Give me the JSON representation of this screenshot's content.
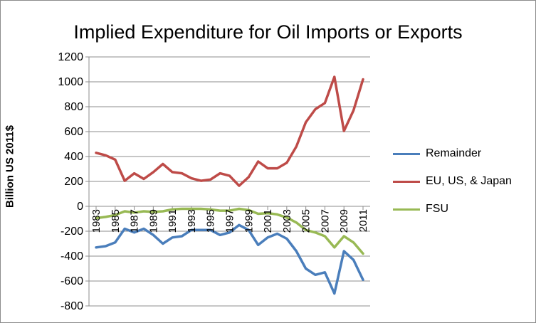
{
  "chart_data": {
    "type": "line",
    "title": "Implied Expenditure for Oil Imports or Exports",
    "xlabel": "",
    "ylabel": "Billion US 2011$",
    "ylim": [
      -800,
      1200
    ],
    "y_ticks": [
      -800,
      -600,
      -400,
      -200,
      0,
      200,
      400,
      600,
      800,
      1000,
      1200
    ],
    "x": [
      1983,
      1984,
      1985,
      1986,
      1987,
      1988,
      1989,
      1990,
      1991,
      1992,
      1993,
      1994,
      1995,
      1996,
      1997,
      1998,
      1999,
      2000,
      2001,
      2002,
      2003,
      2004,
      2005,
      2006,
      2007,
      2008,
      2009,
      2010,
      2011
    ],
    "x_tick_labels": [
      "1983",
      "1985",
      "1987",
      "1989",
      "1991",
      "1993",
      "1995",
      "1997",
      "1999",
      "2001",
      "2003",
      "2005",
      "2007",
      "2009",
      "2011"
    ],
    "grid": "horizontal",
    "legend_position": "right",
    "series": [
      {
        "name": "Remainder",
        "color": "#4a7ebb",
        "values": [
          -330,
          -320,
          -290,
          -180,
          -210,
          -180,
          -230,
          -300,
          -250,
          -240,
          -190,
          -190,
          -190,
          -230,
          -210,
          -150,
          -190,
          -310,
          -250,
          -220,
          -260,
          -360,
          -500,
          -550,
          -530,
          -700,
          -360,
          -430,
          -590
        ]
      },
      {
        "name": "EU, US, & Japan",
        "color": "#be4b48",
        "values": [
          430,
          410,
          375,
          205,
          265,
          220,
          275,
          340,
          275,
          265,
          225,
          205,
          215,
          265,
          245,
          165,
          235,
          360,
          305,
          305,
          350,
          480,
          675,
          780,
          830,
          1040,
          605,
          770,
          1020
        ]
      },
      {
        "name": "FSU",
        "color": "#98b954",
        "values": [
          -95,
          -85,
          -70,
          -40,
          -50,
          -40,
          -45,
          -40,
          -25,
          -20,
          -20,
          -20,
          -25,
          -35,
          -35,
          -20,
          -30,
          -60,
          -55,
          -65,
          -90,
          -130,
          -190,
          -210,
          -240,
          -330,
          -240,
          -290,
          -380
        ]
      }
    ]
  }
}
